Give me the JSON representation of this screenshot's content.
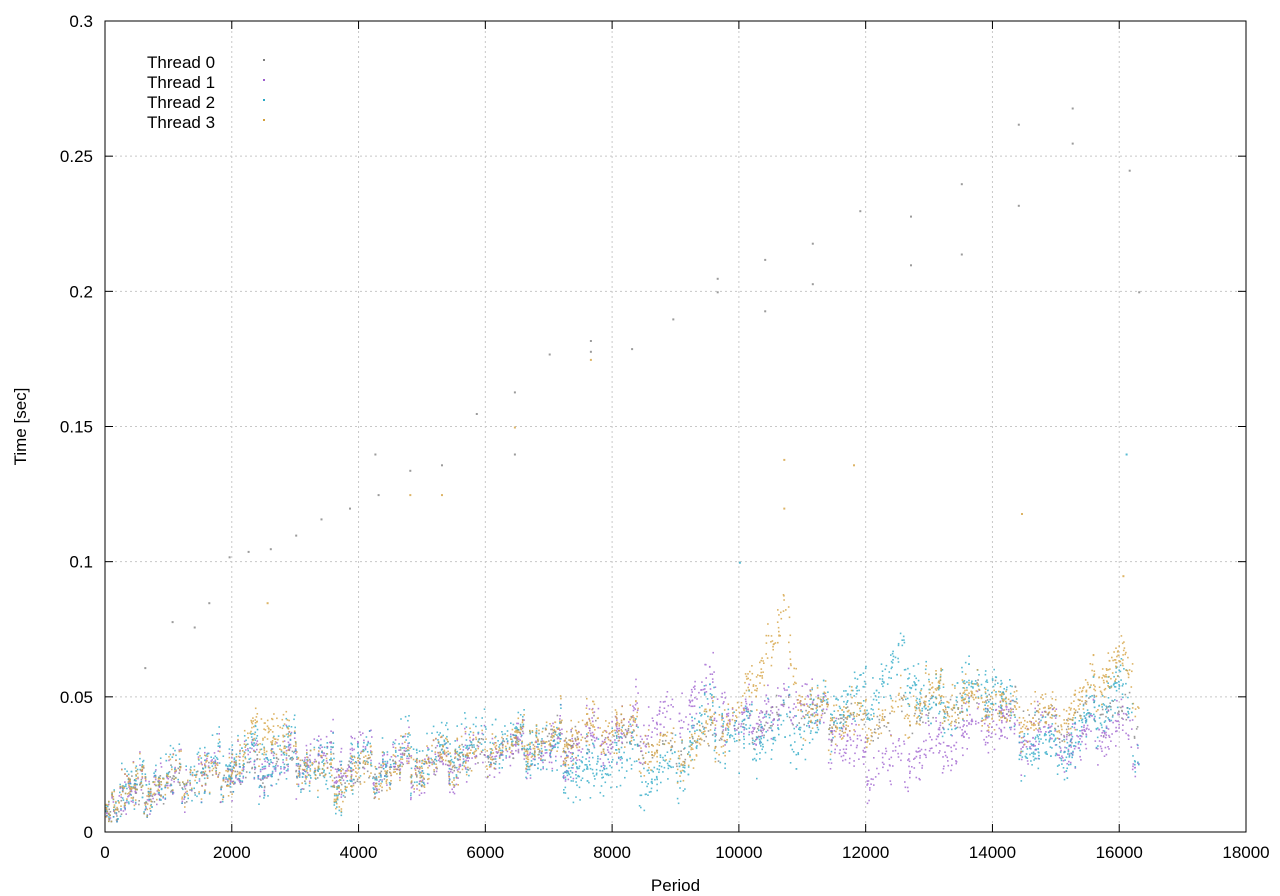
{
  "chart_data": {
    "type": "scatter",
    "title": "",
    "xlabel": "Period",
    "ylabel": "Time [sec]",
    "xlim": [
      0,
      18000
    ],
    "ylim": [
      0,
      0.3
    ],
    "x_ticks": [
      0,
      2000,
      4000,
      6000,
      8000,
      10000,
      12000,
      14000,
      16000,
      18000
    ],
    "y_ticks": [
      0,
      0.05,
      0.1,
      0.15,
      0.2,
      0.25,
      0.3
    ],
    "x_tick_labels": [
      "0",
      "2000",
      "4000",
      "6000",
      "8000",
      "10000",
      "12000",
      "14000",
      "16000",
      "18000"
    ],
    "y_tick_labels": [
      "0",
      "0.05",
      "0.1",
      "0.15",
      "0.2",
      "0.25",
      "0.3"
    ],
    "grid": true,
    "legend_position": "top-left",
    "series": [
      {
        "name": "Thread 0",
        "color": "#7f7f7f",
        "points": [
          [
            620,
            0.061
          ],
          [
            1050,
            0.078
          ],
          [
            1400,
            0.076
          ],
          [
            1630,
            0.085
          ],
          [
            1950,
            0.102
          ],
          [
            2250,
            0.104
          ],
          [
            2600,
            0.105
          ],
          [
            3000,
            0.11
          ],
          [
            3400,
            0.116
          ],
          [
            3850,
            0.12
          ],
          [
            4250,
            0.14
          ],
          [
            4800,
            0.134
          ],
          [
            5300,
            0.136
          ],
          [
            5850,
            0.155
          ],
          [
            6450,
            0.14
          ],
          [
            7000,
            0.177
          ],
          [
            7650,
            0.182
          ],
          [
            8300,
            0.179
          ],
          [
            8950,
            0.19
          ],
          [
            9650,
            0.205
          ],
          [
            10400,
            0.212
          ],
          [
            11150,
            0.218
          ],
          [
            11900,
            0.23
          ],
          [
            12700,
            0.21
          ],
          [
            13500,
            0.214
          ],
          [
            14400,
            0.262
          ],
          [
            15250,
            0.268
          ],
          [
            16150,
            0.245
          ],
          [
            16300,
            0.2
          ],
          [
            4300,
            0.125
          ],
          [
            6450,
            0.163
          ],
          [
            10400,
            0.193
          ],
          [
            11150,
            0.203
          ],
          [
            13500,
            0.24
          ],
          [
            14400,
            0.232
          ],
          [
            15250,
            0.255
          ],
          [
            7650,
            0.178
          ],
          [
            9650,
            0.2
          ],
          [
            12700,
            0.228
          ]
        ],
        "trend": [
          [
            0,
            0.01
          ],
          [
            1000,
            0.018
          ],
          [
            2000,
            0.022
          ],
          [
            3000,
            0.026
          ],
          [
            4000,
            0.022
          ],
          [
            5000,
            0.025
          ],
          [
            6000,
            0.03
          ],
          [
            7000,
            0.033
          ],
          [
            8000,
            0.036
          ],
          [
            9000,
            0.03
          ],
          [
            10000,
            0.04
          ],
          [
            11000,
            0.045
          ],
          [
            12000,
            0.04
          ],
          [
            13000,
            0.045
          ],
          [
            14000,
            0.05
          ],
          [
            15000,
            0.04
          ],
          [
            16000,
            0.045
          ],
          [
            16300,
            0.04
          ]
        ],
        "spread": 0.006,
        "count": 700
      },
      {
        "name": "Thread 1",
        "color": "#9e5fcf",
        "points": [],
        "trend": [
          [
            0,
            0.011
          ],
          [
            1000,
            0.019
          ],
          [
            2000,
            0.024
          ],
          [
            3000,
            0.027
          ],
          [
            4000,
            0.028
          ],
          [
            5000,
            0.024
          ],
          [
            6000,
            0.03
          ],
          [
            7000,
            0.031
          ],
          [
            8000,
            0.036
          ],
          [
            9000,
            0.045
          ],
          [
            9600,
            0.053
          ],
          [
            10000,
            0.038
          ],
          [
            11000,
            0.05
          ],
          [
            12000,
            0.025
          ],
          [
            13000,
            0.03
          ],
          [
            14000,
            0.042
          ],
          [
            15000,
            0.032
          ],
          [
            16000,
            0.04
          ],
          [
            16300,
            0.03
          ]
        ],
        "spread": 0.009,
        "count": 1700
      },
      {
        "name": "Thread 2",
        "color": "#2aa9c6",
        "points": [
          [
            10000,
            0.1
          ],
          [
            16100,
            0.14
          ]
        ],
        "trend": [
          [
            0,
            0.012
          ],
          [
            1000,
            0.02
          ],
          [
            2000,
            0.025
          ],
          [
            3000,
            0.028
          ],
          [
            3500,
            0.02
          ],
          [
            4000,
            0.026
          ],
          [
            5000,
            0.028
          ],
          [
            6000,
            0.035
          ],
          [
            7000,
            0.032
          ],
          [
            7700,
            0.02
          ],
          [
            8000,
            0.03
          ],
          [
            8900,
            0.02
          ],
          [
            9500,
            0.045
          ],
          [
            10000,
            0.035
          ],
          [
            11000,
            0.04
          ],
          [
            12000,
            0.05
          ],
          [
            12600,
            0.065
          ],
          [
            13000,
            0.045
          ],
          [
            14000,
            0.055
          ],
          [
            14500,
            0.035
          ],
          [
            15000,
            0.028
          ],
          [
            16000,
            0.055
          ],
          [
            16300,
            0.03
          ]
        ],
        "spread": 0.01,
        "count": 2200
      },
      {
        "name": "Thread 3",
        "color": "#d4a03c",
        "points": [
          [
            2550,
            0.085
          ],
          [
            5300,
            0.125
          ],
          [
            6450,
            0.15
          ],
          [
            7650,
            0.175
          ],
          [
            10700,
            0.138
          ],
          [
            11800,
            0.136
          ],
          [
            14450,
            0.118
          ],
          [
            16050,
            0.095
          ],
          [
            4800,
            0.125
          ],
          [
            10700,
            0.12
          ]
        ],
        "trend": [
          [
            0,
            0.012
          ],
          [
            1000,
            0.02
          ],
          [
            2000,
            0.023
          ],
          [
            2500,
            0.04
          ],
          [
            3000,
            0.03
          ],
          [
            3500,
            0.02
          ],
          [
            4000,
            0.022
          ],
          [
            5000,
            0.025
          ],
          [
            6000,
            0.032
          ],
          [
            7000,
            0.035
          ],
          [
            8000,
            0.04
          ],
          [
            9000,
            0.028
          ],
          [
            10000,
            0.045
          ],
          [
            10700,
            0.08
          ],
          [
            11000,
            0.045
          ],
          [
            12000,
            0.04
          ],
          [
            13000,
            0.05
          ],
          [
            14000,
            0.048
          ],
          [
            15000,
            0.04
          ],
          [
            16000,
            0.065
          ],
          [
            16300,
            0.05
          ]
        ],
        "spread": 0.008,
        "count": 1900
      }
    ]
  }
}
